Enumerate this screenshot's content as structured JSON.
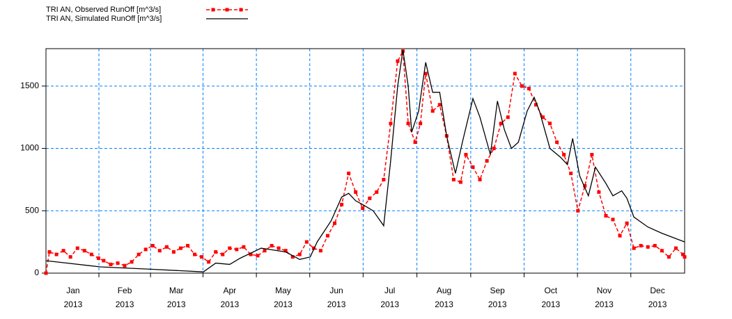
{
  "chart_data": {
    "type": "line",
    "xlim": [
      0,
      365
    ],
    "ylim": [
      0,
      1800
    ],
    "yticks": [
      0,
      500,
      1000,
      1500
    ],
    "xticks": [
      {
        "value": 15.5,
        "label": "Jan 2013"
      },
      {
        "value": 45,
        "label": "Feb 2013"
      },
      {
        "value": 74.5,
        "label": "Mar 2013"
      },
      {
        "value": 105,
        "label": "Apr 2013"
      },
      {
        "value": 135.5,
        "label": "May 2013"
      },
      {
        "value": 166,
        "label": "Jun 2013"
      },
      {
        "value": 196.5,
        "label": "Jul 2013"
      },
      {
        "value": 227.5,
        "label": "Aug 2013"
      },
      {
        "value": 258,
        "label": "Sep 2013"
      },
      {
        "value": 288.5,
        "label": "Oct 2013"
      },
      {
        "value": 319,
        "label": "Nov 2013"
      },
      {
        "value": 349.5,
        "label": "Dec 2013"
      }
    ],
    "grid": true,
    "series": [
      {
        "name": "TRI AN, Observed RunOff [m^3/s]",
        "color": "#ff0000",
        "dashed": true,
        "markers": true,
        "x": [
          0,
          2,
          6,
          10,
          14,
          18,
          22,
          26,
          30,
          33,
          37,
          41,
          45,
          49,
          53,
          57,
          61,
          65,
          69,
          73,
          77,
          81,
          85,
          89,
          93,
          97,
          101,
          105,
          109,
          113,
          117,
          121,
          125,
          129,
          133,
          137,
          141,
          145,
          149,
          153,
          157,
          161,
          165,
          169,
          173,
          177,
          181,
          185,
          189,
          193,
          197,
          201,
          204,
          207,
          211,
          214,
          217,
          221,
          225,
          229,
          233,
          237,
          240,
          244,
          248,
          252,
          256,
          260,
          264,
          268,
          272,
          276,
          280,
          284,
          288,
          292,
          296,
          300,
          304,
          308,
          312,
          316,
          320,
          324,
          328,
          332,
          336,
          340,
          344,
          348,
          352,
          356,
          360,
          364,
          365
        ],
        "values": [
          0,
          170,
          150,
          180,
          130,
          200,
          180,
          150,
          120,
          100,
          70,
          80,
          60,
          90,
          150,
          190,
          220,
          180,
          210,
          170,
          200,
          220,
          150,
          130,
          90,
          170,
          150,
          200,
          190,
          210,
          150,
          140,
          180,
          220,
          200,
          180,
          130,
          150,
          250,
          200,
          180,
          300,
          400,
          550,
          800,
          650,
          520,
          600,
          650,
          750,
          1200,
          1700,
          1780,
          1200,
          1050,
          1200,
          1600,
          1300,
          1350,
          1100,
          750,
          730,
          950,
          850,
          750,
          900,
          1000,
          1200,
          1250,
          1600,
          1500,
          1480,
          1350,
          1250,
          1200,
          1050,
          950,
          800,
          500,
          700,
          950,
          650,
          460,
          430,
          300,
          400,
          200,
          220,
          210,
          220,
          180,
          130,
          200,
          150,
          130
        ]
      },
      {
        "name": "TRI AN, Simulated RunOff [m^3/s]",
        "color": "#000000",
        "dashed": false,
        "markers": false,
        "x": [
          0,
          31,
          62,
          90,
          97,
          105,
          111,
          123,
          137,
          145,
          151,
          155,
          163,
          169,
          173,
          177,
          181,
          187,
          193,
          197,
          201,
          204,
          207,
          209,
          213,
          217,
          221,
          225,
          229,
          234,
          238,
          244,
          248,
          254,
          258,
          262,
          266,
          270,
          275,
          279,
          282,
          288,
          294,
          298,
          301,
          305,
          310,
          314,
          320,
          324,
          329,
          332,
          336,
          344,
          352,
          365
        ],
        "values": [
          100,
          50,
          30,
          10,
          80,
          70,
          120,
          200,
          170,
          110,
          130,
          250,
          420,
          610,
          640,
          580,
          550,
          500,
          380,
          900,
          1500,
          1790,
          1500,
          1130,
          1300,
          1690,
          1450,
          1450,
          1100,
          800,
          1050,
          1400,
          1250,
          950,
          1380,
          1150,
          1000,
          1050,
          1300,
          1410,
          1300,
          1000,
          930,
          870,
          1080,
          780,
          620,
          850,
          720,
          620,
          660,
          600,
          450,
          370,
          320,
          250
        ]
      }
    ]
  }
}
